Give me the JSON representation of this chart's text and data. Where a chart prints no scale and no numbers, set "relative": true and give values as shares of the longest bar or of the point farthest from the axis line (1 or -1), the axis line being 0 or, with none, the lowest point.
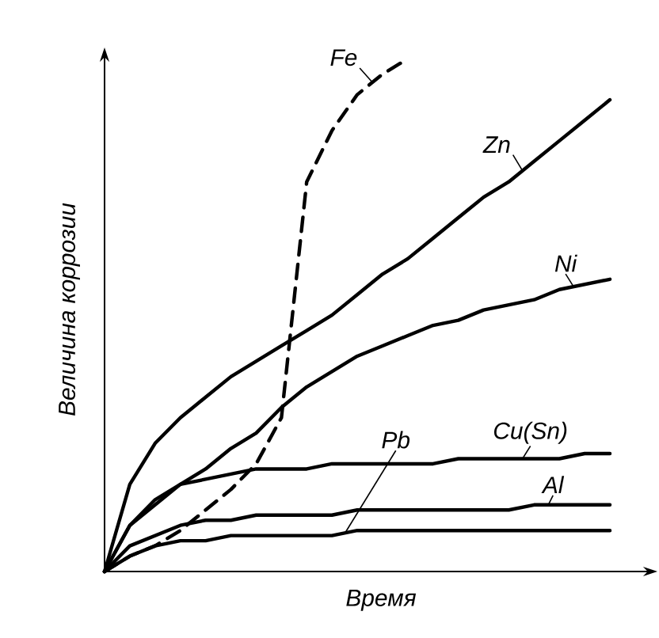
{
  "chart_data": {
    "type": "line",
    "relative": true,
    "xlabel": "Время",
    "ylabel": "Величина коррозии",
    "line_style": "solid",
    "categories": [
      null,
      null,
      null,
      null,
      null,
      null,
      null,
      null,
      null,
      null,
      null,
      null,
      null,
      null,
      null,
      null,
      null,
      null,
      null,
      null,
      null
    ],
    "series": [
      {
        "name": "Fe",
        "color": "#000000",
        "line_style": "dashed",
        "values": [
          0,
          0.03,
          0.05,
          0.08,
          0.12,
          0.16,
          0.21,
          0.3,
          0.76,
          0.86,
          0.93,
          0.97,
          1.0,
          null,
          null,
          null,
          null,
          null,
          null,
          null,
          null
        ]
      },
      {
        "name": "Zn",
        "color": "#000000",
        "values": [
          0,
          0.17,
          0.25,
          0.3,
          0.34,
          0.38,
          0.41,
          0.44,
          0.47,
          0.5,
          0.54,
          0.58,
          0.61,
          0.65,
          0.69,
          0.73,
          0.76,
          0.8,
          0.84,
          0.88,
          0.92
        ]
      },
      {
        "name": "Ni",
        "color": "#000000",
        "values": [
          0,
          0.09,
          0.13,
          0.17,
          0.2,
          0.24,
          0.27,
          0.32,
          0.36,
          0.39,
          0.42,
          0.44,
          0.46,
          0.48,
          0.49,
          0.51,
          0.52,
          0.53,
          0.55,
          0.56,
          0.57
        ]
      },
      {
        "name": "Cu(Sn)",
        "color": "#000000",
        "values": [
          0,
          0.09,
          0.14,
          0.17,
          0.18,
          0.19,
          0.2,
          0.2,
          0.2,
          0.21,
          0.21,
          0.21,
          0.21,
          0.21,
          0.22,
          0.22,
          0.22,
          0.22,
          0.22,
          0.23,
          0.23
        ]
      },
      {
        "name": "Pb",
        "color": "#000000",
        "values": [
          0,
          0.03,
          0.05,
          0.06,
          0.06,
          0.07,
          0.07,
          0.07,
          0.07,
          0.07,
          0.08,
          0.08,
          0.08,
          0.08,
          0.08,
          0.08,
          0.08,
          0.08,
          0.08,
          0.08,
          0.08
        ]
      },
      {
        "name": "Al",
        "color": "#000000",
        "values": [
          0,
          0.05,
          0.07,
          0.09,
          0.1,
          0.1,
          0.11,
          0.11,
          0.11,
          0.11,
          0.12,
          0.12,
          0.12,
          0.12,
          0.12,
          0.12,
          0.12,
          0.13,
          0.13,
          0.13,
          0.13
        ]
      }
    ]
  }
}
